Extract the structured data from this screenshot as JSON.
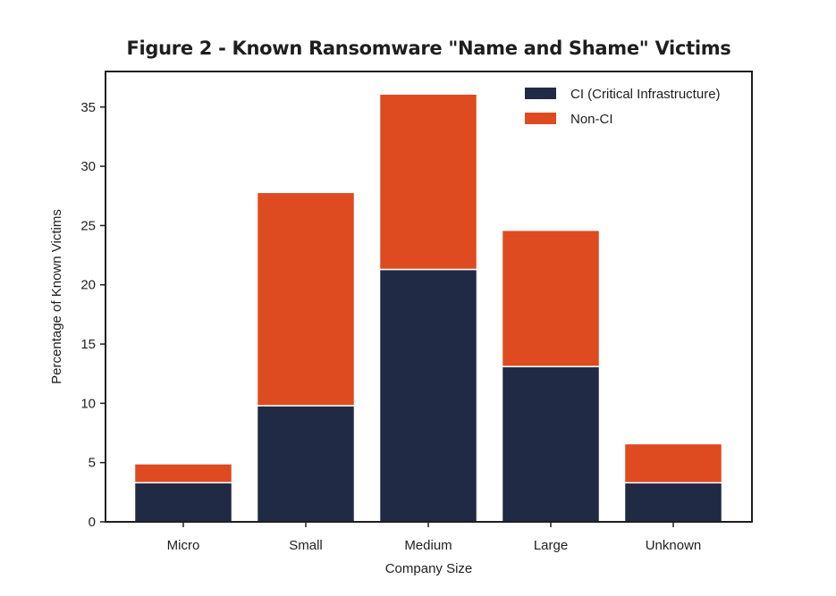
{
  "chart_data": {
    "type": "bar",
    "stacked": true,
    "title": "Figure 2 - Known Ransomware \"Name and Shame\" Victims",
    "xlabel": "Company Size",
    "ylabel": "Percentage of Known Victims",
    "categories": [
      "Micro",
      "Small",
      "Medium",
      "Large",
      "Unknown"
    ],
    "series": [
      {
        "name": "CI (Critical Infrastructure)",
        "color": "#202a44",
        "values": [
          3.3,
          9.8,
          21.3,
          13.1,
          3.3
        ]
      },
      {
        "name": "Non-CI",
        "color": "#de4b20",
        "values": [
          1.6,
          18.0,
          14.8,
          11.5,
          3.3
        ]
      }
    ],
    "ylim": [
      0,
      38
    ],
    "yticks": [
      0,
      5,
      10,
      15,
      20,
      25,
      30,
      35
    ],
    "grid": false,
    "legend_position": "top-right"
  }
}
